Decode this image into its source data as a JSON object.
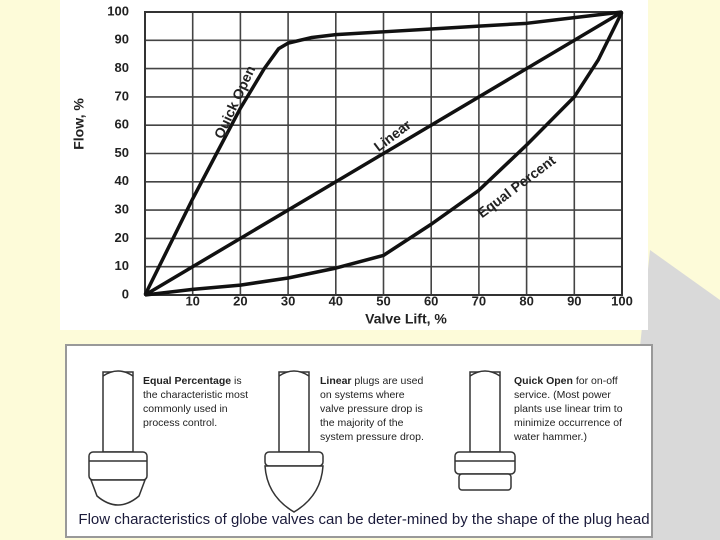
{
  "chart_data": {
    "type": "line",
    "xlabel": "Valve Lift, %",
    "ylabel": "Flow, %",
    "xlim": [
      0,
      100
    ],
    "ylim": [
      0,
      100
    ],
    "xticks": [
      10,
      20,
      30,
      40,
      50,
      60,
      70,
      80,
      90,
      100
    ],
    "yticks": [
      0,
      10,
      20,
      30,
      40,
      50,
      60,
      70,
      80,
      90,
      100
    ],
    "grid": true,
    "series": [
      {
        "name": "Quick Open",
        "color": "#111111",
        "x": [
          0,
          5,
          10,
          15,
          20,
          25,
          28,
          30,
          35,
          40,
          50,
          60,
          70,
          80,
          90,
          100
        ],
        "values": [
          0,
          17,
          34,
          50,
          66,
          80,
          87,
          89,
          91,
          92,
          93,
          94,
          95,
          96,
          98,
          100
        ]
      },
      {
        "name": "Linear",
        "color": "#111111",
        "x": [
          0,
          100
        ],
        "values": [
          0,
          100
        ]
      },
      {
        "name": "Equal Percent",
        "color": "#111111",
        "x": [
          0,
          10,
          20,
          30,
          40,
          50,
          60,
          70,
          80,
          90,
          95,
          100
        ],
        "values": [
          0,
          2,
          3.5,
          6,
          9.5,
          14,
          25,
          37,
          53,
          70,
          83,
          100
        ]
      }
    ]
  },
  "plugs": [
    {
      "name": "Equal Percentage",
      "text": " is the characteristic most commonly used in process control."
    },
    {
      "name": "Linear",
      "text": " plugs are used on systems where valve pressure drop is the majority of the system pressure drop."
    },
    {
      "name": "Quick Open",
      "text": " for on-off service. (Most power plants use linear trim to minimize occurrence of water hammer.)"
    }
  ],
  "caption": "Flow characteristics of globe valves can be deter-mined by the shape of the plug head"
}
